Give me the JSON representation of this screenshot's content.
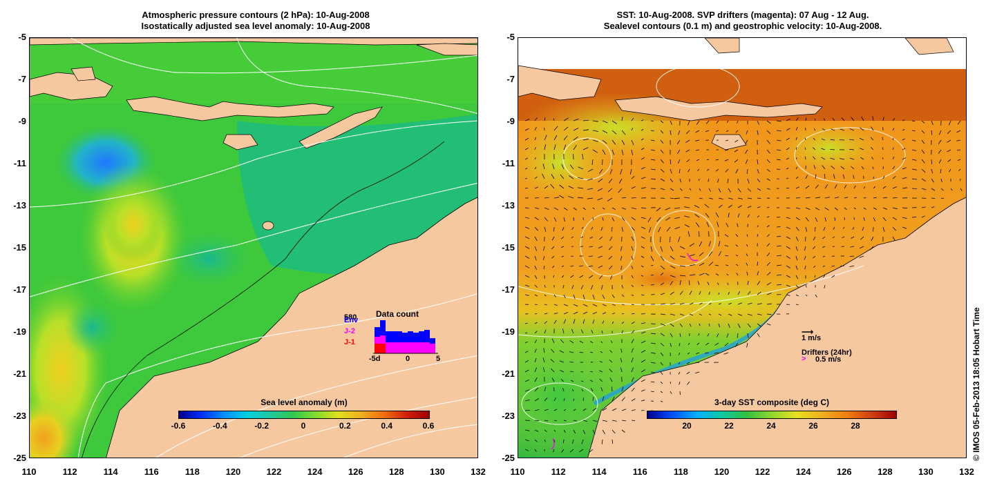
{
  "left": {
    "title_line1": "Atmospheric pressure contours (2 hPa): 10-Aug-2008",
    "title_line2": "Isostatically adjusted sea level anomaly: 10-Aug-2008",
    "colorbar_label": "Sea level anomaly (m)",
    "colorbar_ticks": [
      "-0.6",
      "-0.4",
      "-0.2",
      "0",
      "0.2",
      "0.4",
      "0.6"
    ],
    "inset": {
      "title": "Data count",
      "top_value": "580",
      "satellites": [
        "Env",
        "J-2",
        "J-1"
      ],
      "x_ticks": [
        "-5d",
        "0",
        "5"
      ]
    }
  },
  "right": {
    "title_line1": "SST: 10-Aug-2008. SVP drifters (magenta): 07 Aug - 12 Aug.",
    "title_line2": "Sealevel contours (0.1 m) and geostrophic velocity: 10-Aug-2008.",
    "colorbar_label": "3-day SST composite (deg C)",
    "colorbar_ticks": [
      "20",
      "22",
      "24",
      "26",
      "28"
    ],
    "velocity_legend": "1 m/s",
    "drifters_legend": "Drifters (24hr)",
    "drifters_speed": "0.5 m/s"
  },
  "axes": {
    "y_ticks": [
      "-5",
      "-7",
      "-9",
      "-11",
      "-13",
      "-15",
      "-17",
      "-19",
      "-21",
      "-23",
      "-25"
    ],
    "x_ticks": [
      "110",
      "112",
      "114",
      "116",
      "118",
      "120",
      "122",
      "124",
      "126",
      "128",
      "130",
      "132"
    ]
  },
  "copyright": "© IMOS 05-Feb-2013 18:05 Hobart Time",
  "colors": {
    "land": "#f6c8a0",
    "ocean_green": "#3ec83c",
    "ocean_orange": "#f08c1c",
    "drifter": "#ff00ff"
  }
}
